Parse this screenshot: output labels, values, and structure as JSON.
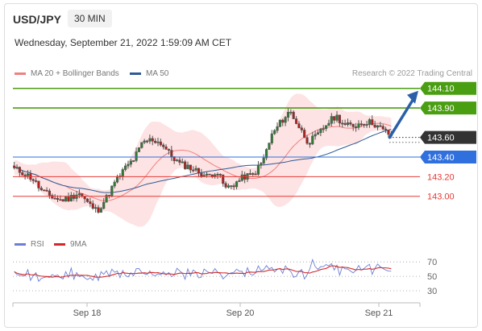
{
  "header": {
    "symbol": "USD/JPY",
    "timeframe": "30 MIN",
    "datetime": "Wednesday, September 21, 2022 1:59:09 AM CET"
  },
  "legend": {
    "ma20_bollinger": "MA 20 + Bollinger Bands",
    "ma50": "MA 50",
    "credit": "Research © 2022 Trading Central"
  },
  "rsi_legend": {
    "rsi": "RSI",
    "ma9": "9MA"
  },
  "colors": {
    "resistance": "#4a9e12",
    "support_blue": "#2f6fde",
    "support_red": "#e53935",
    "current": "#333333",
    "arrow": "#2b5fa8",
    "candle": "#555555",
    "bollinger_fill": "#fde0e0",
    "ma20": "#f08080",
    "ma50": "#2e5a96",
    "rsi": "#6b7fd6",
    "rsi_ma": "#d22828"
  },
  "chart_data": [
    {
      "type": "candlestick",
      "instrument": "USD/JPY",
      "timeframe": "30 MIN",
      "ylim": [
        142.62,
        144.18
      ],
      "x_ticks": [
        "Sep 18",
        "Sep 20",
        "Sep 21"
      ],
      "overlays": [
        "MA 20 + Bollinger Bands",
        "MA 50"
      ],
      "levels": [
        {
          "label": "144.10",
          "value": 144.1,
          "kind": "resistance"
        },
        {
          "label": "143.90",
          "value": 143.9,
          "kind": "resistance"
        },
        {
          "label": "143.60",
          "value": 143.6,
          "kind": "current"
        },
        {
          "label": "143.40",
          "value": 143.4,
          "kind": "support"
        },
        {
          "label": "143.20",
          "value": 143.2,
          "kind": "support"
        },
        {
          "label": "143.00",
          "value": 143.0,
          "kind": "support"
        }
      ],
      "close_path": [
        143.28,
        143.24,
        143.18,
        143.05,
        143.0,
        142.96,
        142.98,
        143.04,
        142.93,
        142.85,
        142.98,
        143.15,
        143.28,
        143.38,
        143.55,
        143.58,
        143.54,
        143.42,
        143.33,
        143.3,
        143.25,
        143.2,
        143.26,
        143.08,
        143.13,
        143.2,
        143.22,
        143.35,
        143.62,
        143.76,
        143.87,
        143.7,
        143.55,
        143.62,
        143.74,
        143.82,
        143.72,
        143.72,
        143.76,
        143.75,
        143.68,
        143.62
      ]
    },
    {
      "type": "line",
      "name": "RSI",
      "ylim": [
        20,
        78
      ],
      "y_ticks": [
        70,
        50,
        30
      ],
      "series": [
        "RSI",
        "9MA"
      ]
    }
  ]
}
